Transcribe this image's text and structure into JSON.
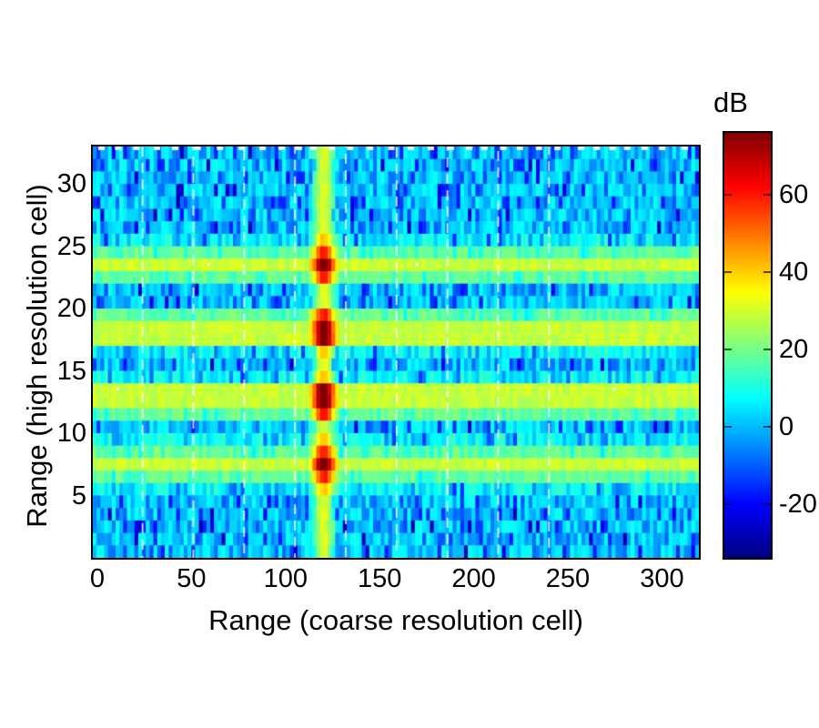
{
  "figure": {
    "background": "#ffffff",
    "xlabel": "Range (coarse resolution cell)",
    "ylabel": "Range (high resolution cell)",
    "colorbar_label": "dB"
  },
  "chart_data": {
    "type": "heatmap",
    "title": "",
    "xlabel": "Range (coarse resolution cell)",
    "ylabel": "Range (high resolution cell)",
    "x_range": [
      0,
      320
    ],
    "y_range": [
      0,
      33
    ],
    "x_ticks": [
      0,
      50,
      100,
      150,
      200,
      250,
      300
    ],
    "y_ticks": [
      5,
      10,
      15,
      20,
      25,
      30
    ],
    "grid_cols": 160,
    "grid_rows": 33,
    "colormap": "jet",
    "color_limits_db": [
      -34,
      76
    ],
    "colorbar": {
      "label": "dB",
      "ticks": [
        60,
        40,
        20,
        0,
        -20
      ],
      "orientation": "vertical",
      "position": "right"
    },
    "background_noise_db": {
      "mean": 2,
      "min": -29,
      "max": 11
    },
    "horizontal_bands": {
      "centers_row": [
        7.4,
        12.9,
        18.2,
        23.6
      ],
      "peak_db": 28,
      "half_width_rows": 2.1,
      "description": "yellow-green range sidelobe bands"
    },
    "vertical_stripe": {
      "center_x": 121.5,
      "visible_width_x": 14,
      "level_db": 30
    },
    "target_blobs": [
      {
        "x": 121.5,
        "row": 7.4,
        "peak_db": 76
      },
      {
        "x": 121.5,
        "row": 12.9,
        "peak_db": 76
      },
      {
        "x": 121.5,
        "row": 18.2,
        "peak_db": 76
      },
      {
        "x": 121.5,
        "row": 23.6,
        "peak_db": 76
      }
    ],
    "dashed_gridlines_x": [
      24,
      51,
      78,
      105,
      132,
      159,
      186,
      213,
      240
    ],
    "gridline_color": "#ffffff",
    "grid": true,
    "legend_position": "none",
    "seed": 42
  }
}
